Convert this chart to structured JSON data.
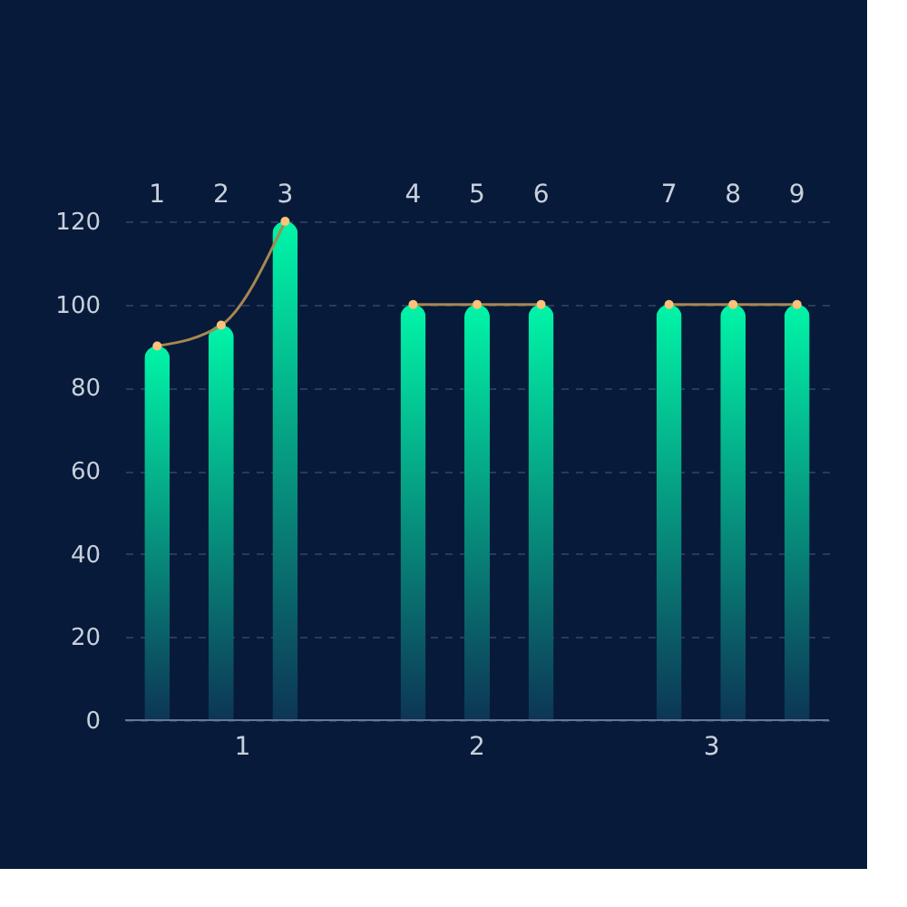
{
  "chart_data": {
    "type": "bar",
    "categories": [
      "1",
      "2",
      "3",
      null,
      "4",
      "5",
      "6",
      null,
      "7",
      "8",
      "9"
    ],
    "series": [
      {
        "color": "#00f5a8",
        "values": [
          90,
          95,
          120,
          null,
          100,
          100,
          100,
          null,
          100,
          100,
          100
        ]
      },
      {
        "type": "line",
        "color": "#a8874f",
        "marker": "circle",
        "values": [
          90,
          95,
          120,
          null,
          100,
          100,
          100,
          null,
          100,
          100,
          100
        ]
      }
    ],
    "annotations": [
      "1",
      "2",
      "3"
    ],
    "ylim": [
      0,
      120
    ],
    "yticks": [
      0,
      20,
      40,
      60,
      80,
      100,
      120
    ],
    "grid": "y"
  }
}
